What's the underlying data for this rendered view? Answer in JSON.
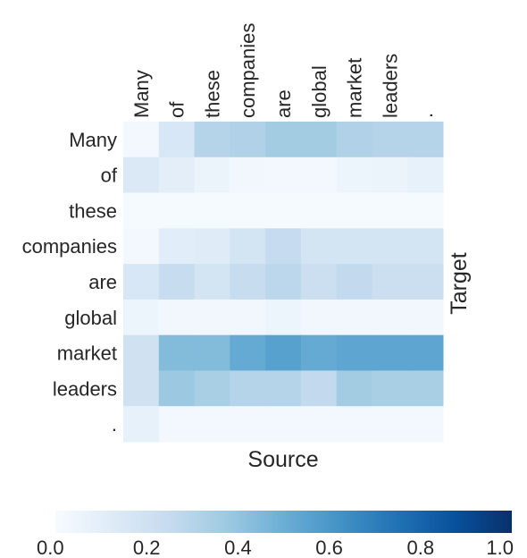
{
  "chart_data": {
    "type": "heatmap",
    "title": "",
    "xlabel": "Source",
    "ylabel": "Target",
    "x_categories": [
      "Many",
      "of",
      "these",
      "companies",
      "are",
      "global",
      "market",
      "leaders",
      "."
    ],
    "y_categories": [
      "Many",
      "of",
      "these",
      "companies",
      "are",
      "global",
      "market",
      "leaders",
      "."
    ],
    "values": [
      [
        0.02,
        0.16,
        0.3,
        0.32,
        0.36,
        0.36,
        0.32,
        0.3,
        0.3
      ],
      [
        0.14,
        0.1,
        0.06,
        0.03,
        0.02,
        0.02,
        0.05,
        0.06,
        0.08
      ],
      [
        0.01,
        0.01,
        0.01,
        0.01,
        0.01,
        0.01,
        0.01,
        0.01,
        0.01
      ],
      [
        0.02,
        0.11,
        0.12,
        0.18,
        0.25,
        0.18,
        0.18,
        0.18,
        0.18
      ],
      [
        0.16,
        0.24,
        0.18,
        0.24,
        0.28,
        0.22,
        0.26,
        0.22,
        0.22
      ],
      [
        0.05,
        0.03,
        0.03,
        0.03,
        0.05,
        0.03,
        0.03,
        0.03,
        0.03
      ],
      [
        0.2,
        0.44,
        0.44,
        0.52,
        0.56,
        0.52,
        0.54,
        0.54,
        0.54
      ],
      [
        0.2,
        0.38,
        0.34,
        0.3,
        0.3,
        0.26,
        0.36,
        0.34,
        0.34
      ],
      [
        0.08,
        0.02,
        0.02,
        0.02,
        0.02,
        0.02,
        0.02,
        0.02,
        0.02
      ]
    ],
    "colorbar": {
      "min": 0.0,
      "max": 1.0,
      "ticks": [
        "0.0",
        "0.2",
        "0.4",
        "0.6",
        "0.8",
        "1.0"
      ],
      "colormap": "Blues",
      "colors": [
        "#f7fbff",
        "#deebf7",
        "#c6dbef",
        "#9ecae1",
        "#6baed6",
        "#4292c6",
        "#2171b5",
        "#08519c",
        "#08306b"
      ]
    },
    "grid": false
  }
}
